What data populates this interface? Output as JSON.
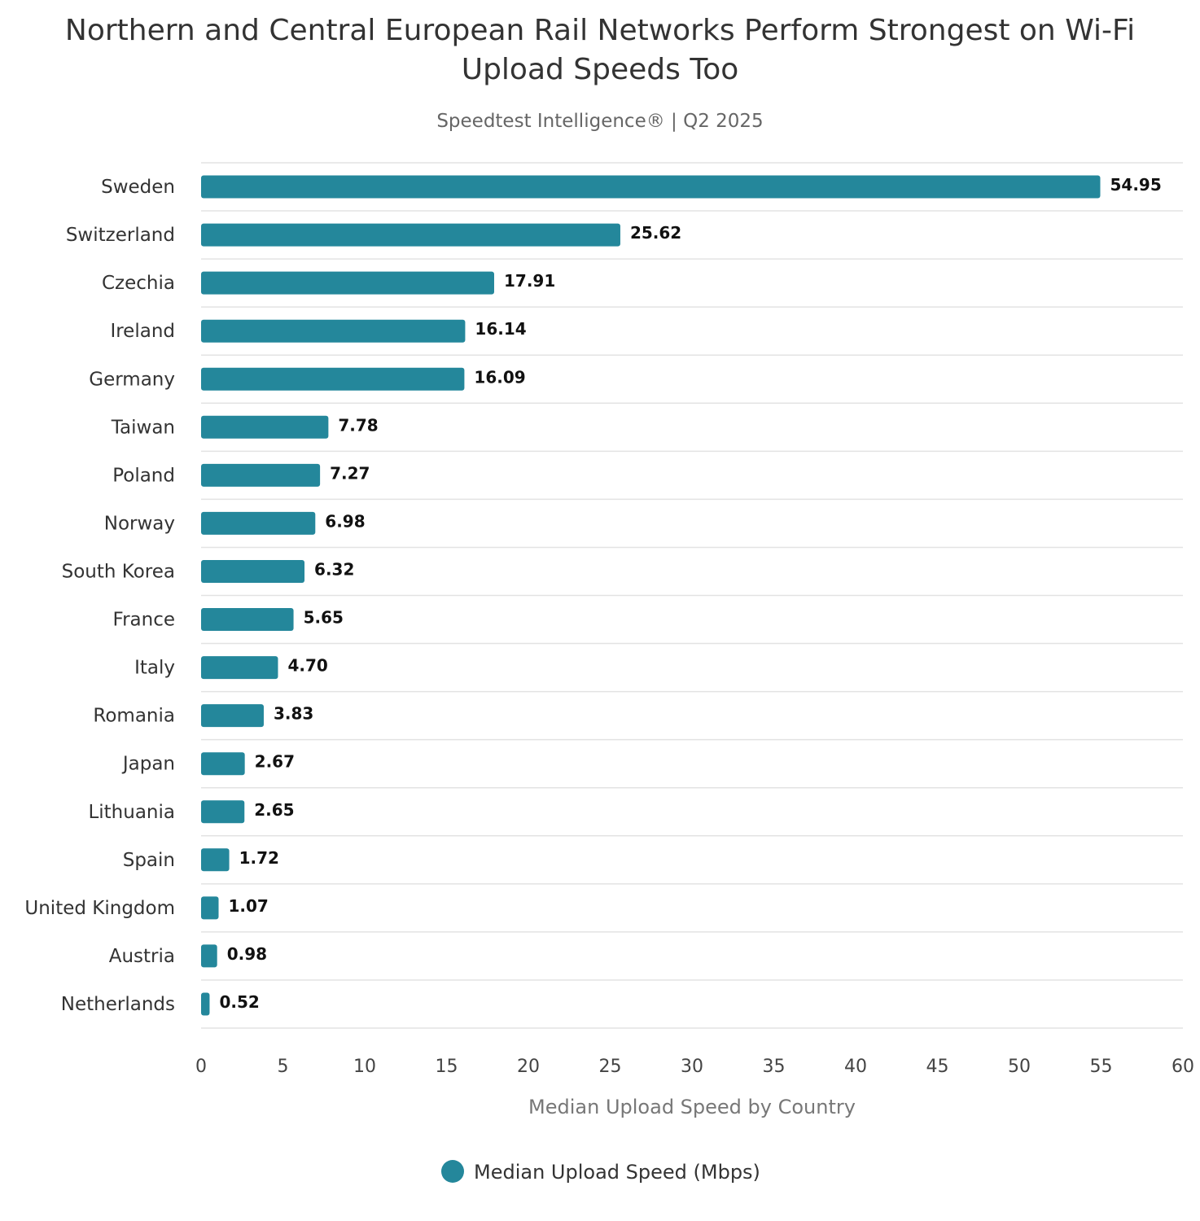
{
  "chart_data": {
    "type": "bar",
    "orientation": "horizontal",
    "title": "Northern and Central European Rail Networks Perform Strongest on Wi-Fi Upload Speeds Too",
    "subtitle": "Speedtest Intelligence® | Q2 2025",
    "x_label": "Median Upload Speed by Country",
    "categories": [
      "Sweden",
      "Switzerland",
      "Czechia",
      "Ireland",
      "Germany",
      "Taiwan",
      "Poland",
      "Norway",
      "South Korea",
      "France",
      "Italy",
      "Romania",
      "Japan",
      "Lithuania",
      "Spain",
      "United Kingdom",
      "Austria",
      "Netherlands"
    ],
    "series": [
      {
        "name": "Median Upload Speed (Mbps)",
        "color": "#24879b",
        "values": [
          54.95,
          25.62,
          17.91,
          16.14,
          16.09,
          7.78,
          7.27,
          6.98,
          6.32,
          5.65,
          4.7,
          3.83,
          2.67,
          2.65,
          1.72,
          1.07,
          0.98,
          0.52
        ],
        "value_labels": [
          "54.95",
          "25.62",
          "17.91",
          "16.14",
          "16.09",
          "7.78",
          "7.27",
          "6.98",
          "6.32",
          "5.65",
          "4.70",
          "3.83",
          "2.67",
          "2.65",
          "1.72",
          "1.07",
          "0.98",
          "0.52"
        ]
      }
    ],
    "xlim": [
      0,
      60
    ],
    "xticks": [
      0,
      5,
      10,
      15,
      20,
      25,
      30,
      35,
      40,
      45,
      50,
      55,
      60
    ]
  }
}
